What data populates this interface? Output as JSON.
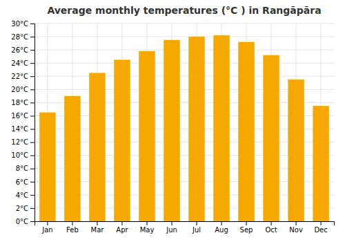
{
  "chart_data": {
    "type": "bar",
    "title": "Average monthly temperatures (°C ) in Rangāpāra",
    "categories": [
      "Jan",
      "Feb",
      "Mar",
      "Apr",
      "May",
      "Jun",
      "Jul",
      "Aug",
      "Sep",
      "Oct",
      "Nov",
      "Dec"
    ],
    "values": [
      16.5,
      19.0,
      22.5,
      24.5,
      25.8,
      27.5,
      28.0,
      28.2,
      27.2,
      25.2,
      21.5,
      17.5
    ],
    "color": "#F5A800",
    "ylim": [
      0,
      30
    ],
    "yticks": [
      {
        "value": 0,
        "label": "0°C"
      },
      {
        "value": 2,
        "label": "2°C"
      },
      {
        "value": 4,
        "label": "4°C"
      },
      {
        "value": 6,
        "label": "6°C"
      },
      {
        "value": 8,
        "label": "8°C"
      },
      {
        "value": 10,
        "label": "10°C"
      },
      {
        "value": 12,
        "label": "12°C"
      },
      {
        "value": 14,
        "label": "14°C"
      },
      {
        "value": 16,
        "label": "16°C"
      },
      {
        "value": 18,
        "label": "18°C"
      },
      {
        "value": 20,
        "label": "20°C"
      },
      {
        "value": 22,
        "label": "22°C"
      },
      {
        "value": 24,
        "label": "24°C"
      },
      {
        "value": 26,
        "label": "26°C"
      },
      {
        "value": 28,
        "label": "28°C"
      },
      {
        "value": 30,
        "label": "30°C"
      }
    ],
    "grid": true
  }
}
